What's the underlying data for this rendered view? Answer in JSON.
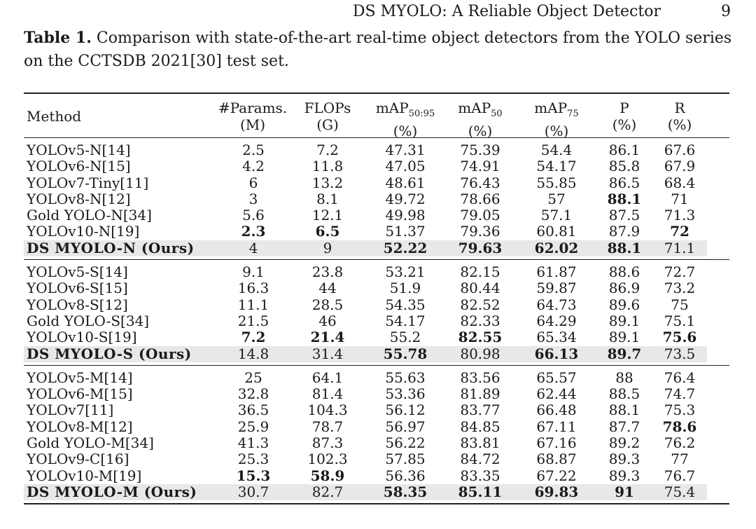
{
  "page": {
    "running_title": "DS MYOLO: A Reliable Object Detector",
    "page_number": "9"
  },
  "caption": {
    "label": "Table 1.",
    "text": "Comparison with state-of-the-art real-time object detectors from the YOLO series on the CCTSDB 2021[30] test set."
  },
  "table": {
    "headers": {
      "method": "Method",
      "params": [
        "#Params.",
        "(M)"
      ],
      "flops": [
        "FLOPs",
        "(G)"
      ],
      "map5095": [
        "mAP",
        "50:95",
        "(%)"
      ],
      "map50": [
        "mAP",
        "50",
        "(%)"
      ],
      "map75": [
        "mAP",
        "75",
        "(%)"
      ],
      "p": [
        "P",
        "(%)"
      ],
      "r": [
        "R",
        "(%)"
      ]
    },
    "groups": [
      {
        "rows": [
          {
            "method": "YOLOv5-N[14]",
            "params": "2.5",
            "flops": "7.2",
            "map5095": "47.31",
            "map50": "75.39",
            "map75": "54.4",
            "p": "86.1",
            "r": "67.6"
          },
          {
            "method": "YOLOv6-N[15]",
            "params": "4.2",
            "flops": "11.8",
            "map5095": "47.05",
            "map50": "74.91",
            "map75": "54.17",
            "p": "85.8",
            "r": "67.9"
          },
          {
            "method": "YOLOv7-Tiny[11]",
            "params": "6",
            "flops": "13.2",
            "map5095": "48.61",
            "map50": "76.43",
            "map75": "55.85",
            "p": "86.5",
            "r": "68.4"
          },
          {
            "method": "YOLOv8-N[12]",
            "params": "3",
            "flops": "8.1",
            "map5095": "49.72",
            "map50": "78.66",
            "map75": "57",
            "p": "88.1",
            "r": "71",
            "bold": [
              "p"
            ]
          },
          {
            "method": "Gold YOLO-N[34]",
            "params": "5.6",
            "flops": "12.1",
            "map5095": "49.98",
            "map50": "79.05",
            "map75": "57.1",
            "p": "87.5",
            "r": "71.3"
          },
          {
            "method": "YOLOv10-N[19]",
            "params": "2.3",
            "flops": "6.5",
            "map5095": "51.37",
            "map50": "79.36",
            "map75": "60.81",
            "p": "87.9",
            "r": "72",
            "bold": [
              "params",
              "flops",
              "r"
            ]
          },
          {
            "method": "DS MYOLO-N (Ours)",
            "params": "4",
            "flops": "9",
            "map5095": "52.22",
            "map50": "79.63",
            "map75": "62.02",
            "p": "88.1",
            "r": "71.1",
            "ours": true,
            "bold": [
              "map5095",
              "map50",
              "map75",
              "p"
            ]
          }
        ]
      },
      {
        "rows": [
          {
            "method": "YOLOv5-S[14]",
            "params": "9.1",
            "flops": "23.8",
            "map5095": "53.21",
            "map50": "82.15",
            "map75": "61.87",
            "p": "88.6",
            "r": "72.7"
          },
          {
            "method": "YOLOv6-S[15]",
            "params": "16.3",
            "flops": "44",
            "map5095": "51.9",
            "map50": "80.44",
            "map75": "59.87",
            "p": "86.9",
            "r": "73.2"
          },
          {
            "method": "YOLOv8-S[12]",
            "params": "11.1",
            "flops": "28.5",
            "map5095": "54.35",
            "map50": "82.52",
            "map75": "64.73",
            "p": "89.6",
            "r": "75"
          },
          {
            "method": "Gold YOLO-S[34]",
            "params": "21.5",
            "flops": "46",
            "map5095": "54.17",
            "map50": "82.33",
            "map75": "64.29",
            "p": "89.1",
            "r": "75.1"
          },
          {
            "method": "YOLOv10-S[19]",
            "params": "7.2",
            "flops": "21.4",
            "map5095": "55.2",
            "map50": "82.55",
            "map75": "65.34",
            "p": "89.1",
            "r": "75.6",
            "bold": [
              "params",
              "flops",
              "map50",
              "r"
            ]
          },
          {
            "method": "DS MYOLO-S (Ours)",
            "params": "14.8",
            "flops": "31.4",
            "map5095": "55.78",
            "map50": "80.98",
            "map75": "66.13",
            "p": "89.7",
            "r": "73.5",
            "ours": true,
            "bold": [
              "map5095",
              "map75",
              "p"
            ]
          }
        ]
      },
      {
        "rows": [
          {
            "method": "YOLOv5-M[14]",
            "params": "25",
            "flops": "64.1",
            "map5095": "55.63",
            "map50": "83.56",
            "map75": "65.57",
            "p": "88",
            "r": "76.4"
          },
          {
            "method": "YOLOv6-M[15]",
            "params": "32.8",
            "flops": "81.4",
            "map5095": "53.36",
            "map50": "81.89",
            "map75": "62.44",
            "p": "88.5",
            "r": "74.7"
          },
          {
            "method": "YOLOv7[11]",
            "params": "36.5",
            "flops": "104.3",
            "map5095": "56.12",
            "map50": "83.77",
            "map75": "66.48",
            "p": "88.1",
            "r": "75.3"
          },
          {
            "method": "YOLOv8-M[12]",
            "params": "25.9",
            "flops": "78.7",
            "map5095": "56.97",
            "map50": "84.85",
            "map75": "67.11",
            "p": "87.7",
            "r": "78.6",
            "bold": [
              "r"
            ]
          },
          {
            "method": "Gold YOLO-M[34]",
            "params": "41.3",
            "flops": "87.3",
            "map5095": "56.22",
            "map50": "83.81",
            "map75": "67.16",
            "p": "89.2",
            "r": "76.2"
          },
          {
            "method": "YOLOv9-C[16]",
            "params": "25.3",
            "flops": "102.3",
            "map5095": "57.85",
            "map50": "84.72",
            "map75": "68.87",
            "p": "89.3",
            "r": "77"
          },
          {
            "method": "YOLOv10-M[19]",
            "params": "15.3",
            "flops": "58.9",
            "map5095": "56.36",
            "map50": "83.35",
            "map75": "67.22",
            "p": "89.3",
            "r": "76.7",
            "bold": [
              "params",
              "flops"
            ]
          },
          {
            "method": "DS MYOLO-M (Ours)",
            "params": "30.7",
            "flops": "82.7",
            "map5095": "58.35",
            "map50": "85.11",
            "map75": "69.83",
            "p": "91",
            "r": "75.4",
            "ours": true,
            "bold": [
              "map5095",
              "map50",
              "map75",
              "p"
            ]
          }
        ]
      }
    ]
  }
}
